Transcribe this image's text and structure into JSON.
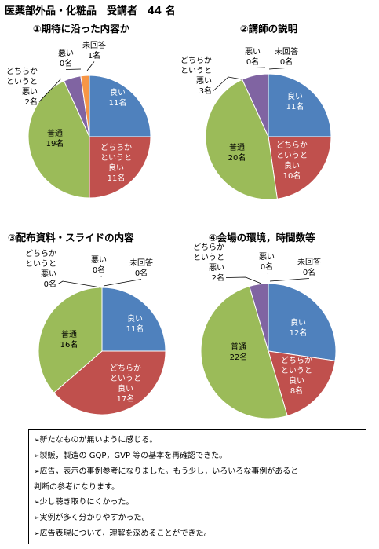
{
  "page": {
    "title": "医薬部外品・化粧品　受講者　44 名"
  },
  "chart_data": [
    {
      "type": "pie",
      "title": "①期待に沿った内容か",
      "categories": [
        "良い",
        "どちらかというと良い",
        "普通",
        "どちらかというと悪い",
        "悪い",
        "未回答"
      ],
      "values": [
        11,
        11,
        19,
        2,
        0,
        1
      ],
      "labels": [
        [
          "良い",
          "11名"
        ],
        [
          "どちらか",
          "というと",
          "良い",
          "11名"
        ],
        [
          "普通",
          "19名"
        ],
        [
          "どちらか",
          "というと",
          "悪い",
          "2名"
        ],
        [
          "悪い",
          "0名"
        ],
        [
          "未回答",
          "1名"
        ]
      ],
      "colors": [
        "#4f81bd",
        "#c0504d",
        "#9bbb59",
        "#8064a2",
        "#4bacc6",
        "#f79646"
      ]
    },
    {
      "type": "pie",
      "title": "②講師の説明",
      "categories": [
        "良い",
        "どちらかというと良い",
        "普通",
        "どちらかというと悪い",
        "悪い",
        "未回答"
      ],
      "values": [
        11,
        10,
        20,
        3,
        0,
        0
      ],
      "labels": [
        [
          "良い",
          "11名"
        ],
        [
          "どちらか",
          "というと",
          "良い",
          "10名"
        ],
        [
          "普通",
          "20名"
        ],
        [
          "どちらか",
          "というと",
          "悪い",
          "3名"
        ],
        [
          "悪い",
          "0名"
        ],
        [
          "未回答",
          "0名"
        ]
      ],
      "colors": [
        "#4f81bd",
        "#c0504d",
        "#9bbb59",
        "#8064a2",
        "#4bacc6",
        "#f79646"
      ]
    },
    {
      "type": "pie",
      "title": "③配布資料・スライドの内容",
      "categories": [
        "良い",
        "どちらかというと良い",
        "普通",
        "どちらかというと悪い",
        "悪い",
        "未回答"
      ],
      "values": [
        11,
        17,
        16,
        0,
        0,
        0
      ],
      "labels": [
        [
          "良い",
          "11名"
        ],
        [
          "どちらか",
          "というと",
          "良い",
          "17名"
        ],
        [
          "普通",
          "16名"
        ],
        [
          "どちらか",
          "というと",
          "悪い",
          "0名"
        ],
        [
          "悪い",
          "0名"
        ],
        [
          "未回答",
          "0名"
        ]
      ],
      "colors": [
        "#4f81bd",
        "#c0504d",
        "#9bbb59",
        "#8064a2",
        "#4bacc6",
        "#f79646"
      ]
    },
    {
      "type": "pie",
      "title": "④会場の環境，時間数等",
      "categories": [
        "良い",
        "どちらかというと良い",
        "普通",
        "どちらかというと悪い",
        "悪い",
        "未回答"
      ],
      "values": [
        12,
        8,
        22,
        2,
        0,
        0
      ],
      "labels": [
        [
          "良い",
          "12名"
        ],
        [
          "どちらか",
          "というと",
          "良い",
          "8名"
        ],
        [
          "普通",
          "22名"
        ],
        [
          "どちらか",
          "というと",
          "悪い",
          "2名"
        ],
        [
          "悪い",
          "0名"
        ],
        [
          "未回答",
          "0名"
        ]
      ],
      "colors": [
        "#4f81bd",
        "#c0504d",
        "#9bbb59",
        "#8064a2",
        "#4bacc6",
        "#f79646"
      ]
    }
  ],
  "comments": {
    "bullet": "➢",
    "items": [
      "新たなものが無いように感じる。",
      "製販，製造の GQP，GVP 等の基本を再確認できた。",
      "広告，表示の事例参考になりました。もう少し，いろいろな事例があると\n判断の参考になります。",
      "少し聴き取りにくかった。",
      "実例が多く分かりやすかった。",
      "広告表現について，理解を深めることができた。"
    ]
  }
}
